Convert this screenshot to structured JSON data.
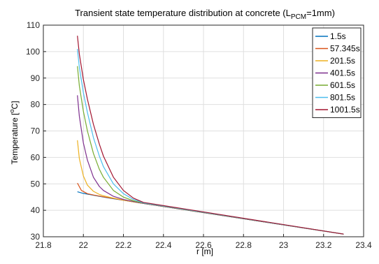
{
  "chart_data": {
    "type": "line",
    "title_main": "Transient state temperature distribution at concrete (L",
    "title_sub": "PCM",
    "title_end": "=1mm)",
    "xlabel": "r [m]",
    "ylabel_pre": "Temperature [",
    "ylabel_sup": "o",
    "ylabel_post": "C]",
    "xlim": [
      21.8,
      23.4
    ],
    "ylim": [
      30,
      110
    ],
    "xticks": [
      21.8,
      22,
      22.2,
      22.4,
      22.6,
      22.8,
      23,
      23.2,
      23.4
    ],
    "xtick_labels": [
      "21.8",
      "22",
      "22.2",
      "22.4",
      "22.6",
      "22.8",
      "23",
      "23.2",
      "23.4"
    ],
    "yticks": [
      30,
      40,
      50,
      60,
      70,
      80,
      90,
      100,
      110
    ],
    "ytick_labels": [
      "30",
      "40",
      "50",
      "60",
      "70",
      "80",
      "90",
      "100",
      "110"
    ],
    "grid": true,
    "legend_position": "top-right",
    "series": [
      {
        "name": "1.5s",
        "color": "#0072BD",
        "x": [
          21.97,
          22.0,
          22.05,
          22.1,
          22.15,
          22.2,
          22.25,
          22.3,
          23.3
        ],
        "y": [
          47.0,
          46.4,
          45.7,
          45.0,
          44.4,
          43.8,
          43.2,
          42.6,
          31.0
        ]
      },
      {
        "name": "57.345s",
        "color": "#D95319",
        "x": [
          21.97,
          21.99,
          22.02,
          22.05,
          22.1,
          22.15,
          22.2,
          22.25,
          22.3,
          23.3
        ],
        "y": [
          50.3,
          47.5,
          46.3,
          45.8,
          45.1,
          44.5,
          43.8,
          43.2,
          42.6,
          31.0
        ]
      },
      {
        "name": "201.5s",
        "color": "#EDB120",
        "x": [
          21.97,
          21.98,
          22.0,
          22.02,
          22.05,
          22.08,
          22.1,
          22.15,
          22.2,
          22.25,
          22.3,
          23.3
        ],
        "y": [
          66.5,
          59.5,
          53.0,
          49.5,
          47.2,
          46.0,
          45.5,
          44.6,
          43.9,
          43.2,
          42.6,
          31.0
        ]
      },
      {
        "name": "401.5s",
        "color": "#7E2F8E",
        "x": [
          21.97,
          21.98,
          22.0,
          22.02,
          22.05,
          22.08,
          22.1,
          22.15,
          22.2,
          22.25,
          22.3,
          23.3
        ],
        "y": [
          83.5,
          75.5,
          65.5,
          59.0,
          52.5,
          49.0,
          47.5,
          45.3,
          44.1,
          43.3,
          42.6,
          31.0
        ]
      },
      {
        "name": "601.5s",
        "color": "#77AC30",
        "x": [
          21.97,
          21.98,
          22.0,
          22.02,
          22.05,
          22.08,
          22.1,
          22.15,
          22.2,
          22.25,
          22.3,
          23.3
        ],
        "y": [
          94.5,
          87.0,
          77.5,
          70.0,
          61.5,
          55.5,
          52.5,
          47.5,
          45.0,
          43.6,
          42.7,
          31.0
        ]
      },
      {
        "name": "801.5s",
        "color": "#4DBEEE",
        "x": [
          21.97,
          21.98,
          22.0,
          22.02,
          22.05,
          22.08,
          22.1,
          22.15,
          22.2,
          22.25,
          22.3,
          23.3
        ],
        "y": [
          101.0,
          94.0,
          84.5,
          77.0,
          67.5,
          60.5,
          56.5,
          50.0,
          46.3,
          44.1,
          42.8,
          31.0
        ]
      },
      {
        "name": "1001.5s",
        "color": "#A2142F",
        "x": [
          21.97,
          21.98,
          22.0,
          22.02,
          22.05,
          22.08,
          22.1,
          22.15,
          22.2,
          22.25,
          22.3,
          23.3
        ],
        "y": [
          106.0,
          99.0,
          89.5,
          82.0,
          72.5,
          65.0,
          60.5,
          52.5,
          47.5,
          44.6,
          43.0,
          31.0
        ]
      }
    ]
  }
}
